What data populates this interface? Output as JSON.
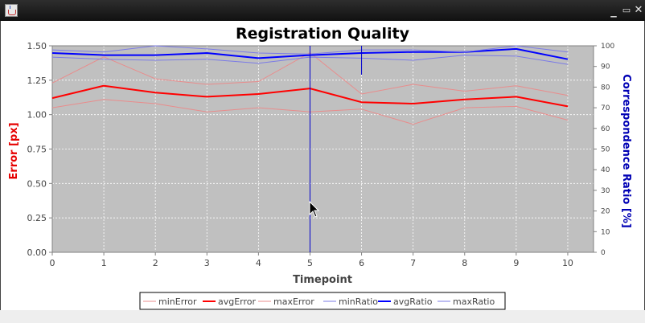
{
  "chart_data": {
    "type": "line",
    "title": "Registration Quality",
    "xlabel": "Timepoint",
    "ylabel_left": "Error [px]",
    "ylabel_right": "Correspondence Ratio  [%]",
    "x": [
      0,
      1,
      2,
      3,
      4,
      5,
      6,
      7,
      8,
      9,
      10
    ],
    "xlim": [
      0,
      10.5
    ],
    "ylim_left": [
      0,
      1.5
    ],
    "ylim_right": [
      0,
      100
    ],
    "left_ticks": [
      "0.00",
      "0.25",
      "0.50",
      "0.75",
      "1.00",
      "1.25",
      "1.50"
    ],
    "right_ticks": [
      "0",
      "10",
      "20",
      "30",
      "40",
      "50",
      "60",
      "70",
      "80",
      "90",
      "100"
    ],
    "x_ticks": [
      "0",
      "1",
      "2",
      "3",
      "4",
      "5",
      "6",
      "7",
      "8",
      "9",
      "10"
    ],
    "grid": true,
    "legend_position": "bottom",
    "crosshair_x": 5,
    "series": [
      {
        "name": "minError",
        "axis": "left",
        "color": "#e98c8c",
        "width": 1,
        "values": [
          1.05,
          1.11,
          1.08,
          1.02,
          1.05,
          1.02,
          1.04,
          0.93,
          1.05,
          1.06,
          0.96
        ]
      },
      {
        "name": "avgError",
        "axis": "left",
        "color": "#ff0000",
        "width": 2,
        "values": [
          1.12,
          1.21,
          1.16,
          1.13,
          1.15,
          1.19,
          1.09,
          1.08,
          1.11,
          1.13,
          1.06
        ]
      },
      {
        "name": "maxError",
        "axis": "left",
        "color": "#e98c8c",
        "width": 1,
        "values": [
          1.23,
          1.42,
          1.26,
          1.22,
          1.24,
          1.45,
          1.15,
          1.22,
          1.17,
          1.21,
          1.14
        ]
      },
      {
        "name": "minRatio",
        "axis": "right",
        "color": "#7b7be6",
        "width": 1,
        "values": [
          94.5,
          93.5,
          93.0,
          93.5,
          91.5,
          94.5,
          94.0,
          93.0,
          95.5,
          95.0,
          91.0
        ]
      },
      {
        "name": "avgRatio",
        "axis": "right",
        "color": "#0000ff",
        "width": 2,
        "values": [
          96.5,
          95.5,
          95.5,
          96.5,
          94.0,
          95.5,
          96.5,
          97.0,
          97.0,
          98.5,
          93.5
        ]
      },
      {
        "name": "maxRatio",
        "axis": "right",
        "color": "#7b7be6",
        "width": 1,
        "values": [
          98.0,
          97.0,
          100.0,
          98.5,
          96.5,
          96.0,
          98.0,
          98.0,
          97.0,
          100.0,
          97.0
        ]
      }
    ]
  },
  "colors": {
    "plot_background": "#c0c0c0",
    "grid": "#ffffff",
    "left_axis_label": "#e60000",
    "right_axis_label": "#0000b4",
    "crosshair": "#0000cc"
  },
  "window": {
    "icons": [
      "java-app-icon",
      "minimize-icon",
      "maximize-icon",
      "close-icon"
    ],
    "minimize_glyph": "_",
    "maximize_glyph": "▭",
    "close_glyph": "✕"
  },
  "cursor": "arrow-pointer"
}
